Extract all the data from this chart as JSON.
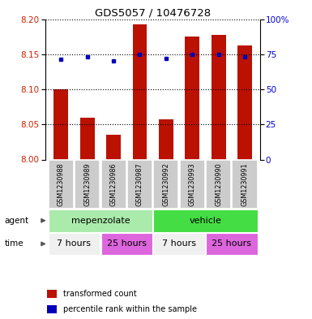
{
  "title": "GDS5057 / 10476728",
  "samples": [
    "GSM1230988",
    "GSM1230989",
    "GSM1230986",
    "GSM1230987",
    "GSM1230992",
    "GSM1230993",
    "GSM1230990",
    "GSM1230991"
  ],
  "bar_values": [
    8.1,
    8.06,
    8.035,
    8.193,
    8.057,
    8.175,
    8.178,
    8.163
  ],
  "bar_base": 8.0,
  "percentile_values": [
    8.143,
    8.146,
    8.141,
    8.15,
    8.144,
    8.15,
    8.15,
    8.146
  ],
  "ylim": [
    8.0,
    8.2
  ],
  "yticks_left": [
    8.0,
    8.05,
    8.1,
    8.15,
    8.2
  ],
  "yticks_right": [
    0,
    25,
    50,
    75,
    100
  ],
  "bar_color": "#bb1100",
  "percentile_color": "#0000bb",
  "agent_groups": [
    {
      "label": "mepenzolate",
      "start": 0,
      "end": 4,
      "color": "#aaeaaa"
    },
    {
      "label": "vehicle",
      "start": 4,
      "end": 8,
      "color": "#44dd44"
    }
  ],
  "time_groups": [
    {
      "label": "7 hours",
      "start": 0,
      "end": 2,
      "color": "#ee88ee"
    },
    {
      "label": "25 hours",
      "start": 2,
      "end": 4,
      "color": "#ee44ee"
    },
    {
      "label": "7 hours",
      "start": 4,
      "end": 6,
      "color": "#ee88ee"
    },
    {
      "label": "25 hours",
      "start": 6,
      "end": 8,
      "color": "#ee44ee"
    }
  ],
  "xlabel_agent": "agent",
  "xlabel_time": "time",
  "legend_bar": "transformed count",
  "legend_pct": "percentile rank within the sample",
  "bar_width": 0.55,
  "sample_box_color": "#cccccc",
  "grid_color": "#000000",
  "right_axis_color": "#0000cc",
  "left_axis_color": "#cc2200",
  "fig_width": 3.85,
  "fig_height": 3.93,
  "dpi": 100
}
